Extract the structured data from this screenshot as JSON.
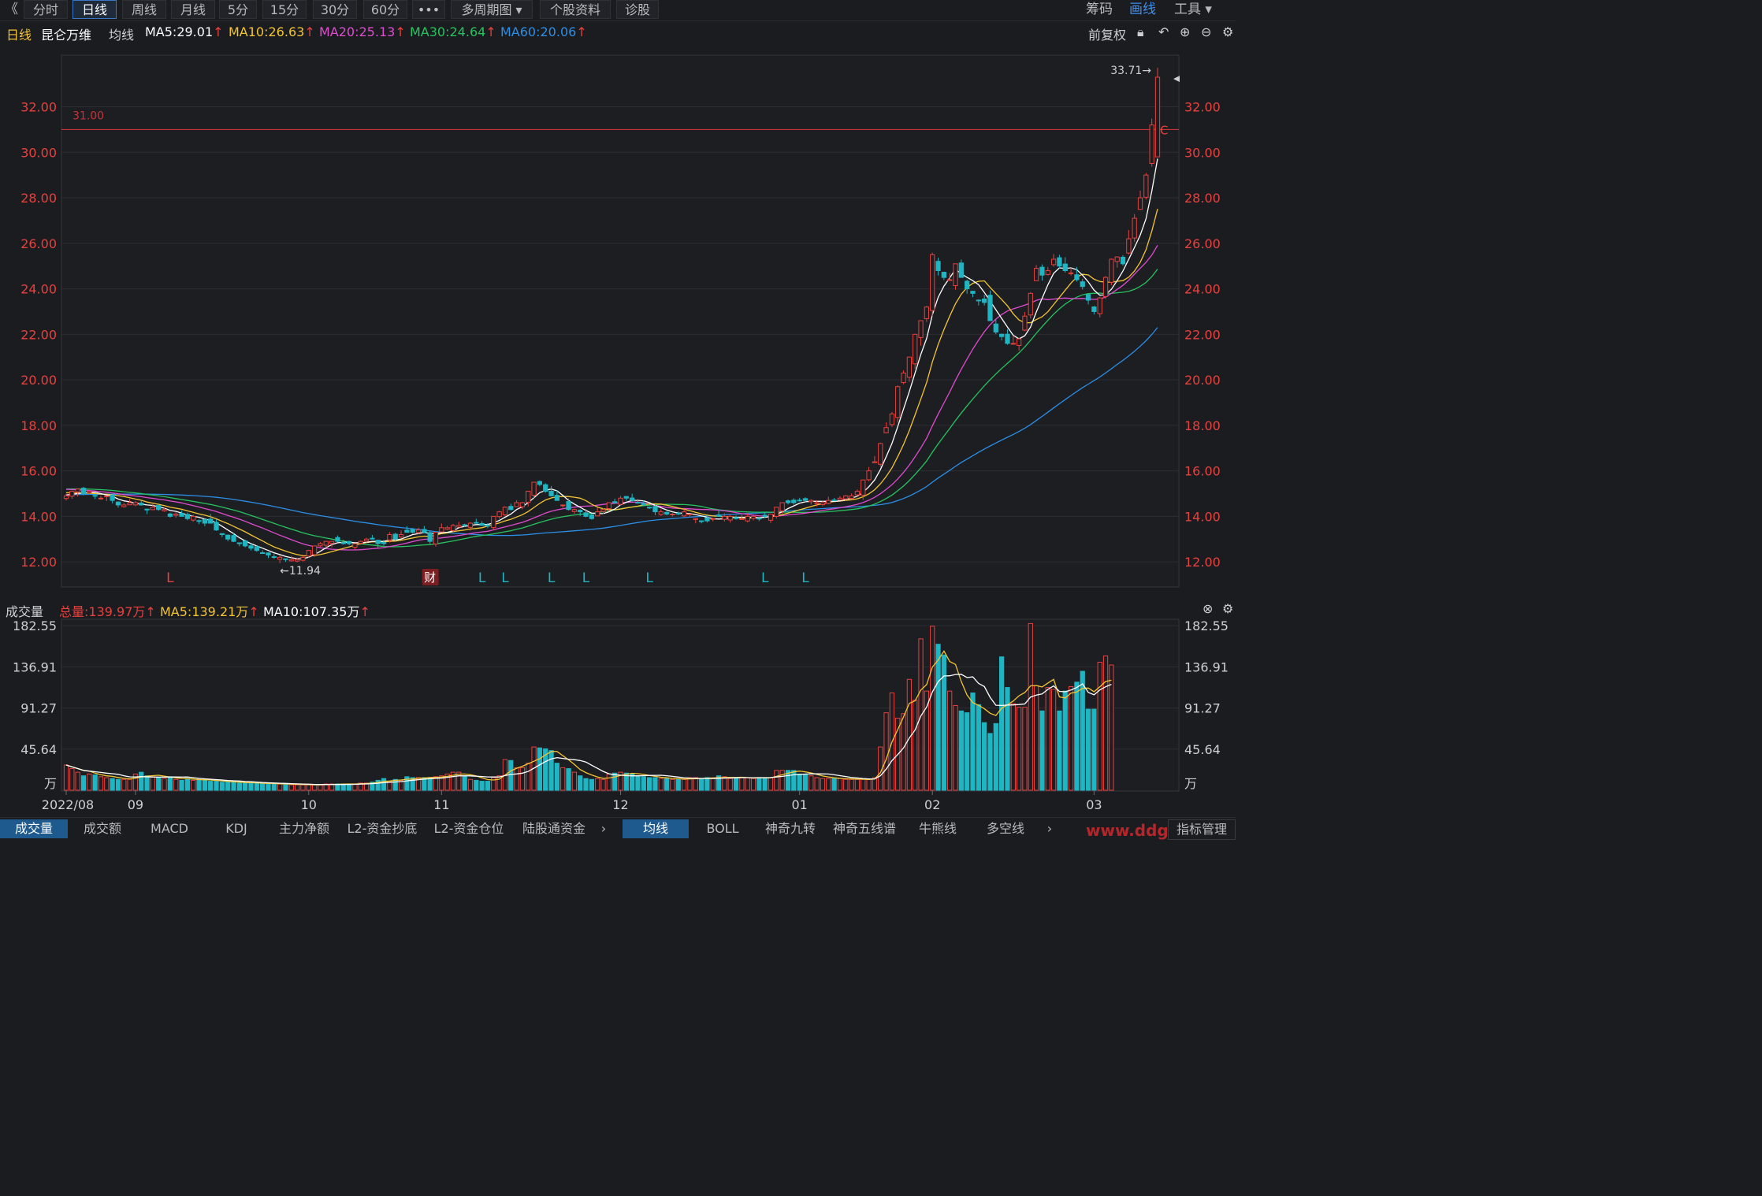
{
  "toolbar": {
    "back_icon": "《",
    "tabs": [
      "分时",
      "日线",
      "周线",
      "月线",
      "5分",
      "15分",
      "30分",
      "60分",
      "•••",
      "多周期图 ▾",
      "个股资料",
      "诊股"
    ],
    "active_tab": "日线",
    "right_items": [
      "筹码",
      "画线",
      "工具 ▾"
    ]
  },
  "info": {
    "period": "日线",
    "stock_name": "昆仑万维",
    "ma_label": "均线",
    "ma5": "MA5:29.01",
    "ma10": "MA10:26.63",
    "ma20": "MA20:25.13",
    "ma30": "MA30:24.64",
    "ma60": "MA60:20.06",
    "adjust": "前复权"
  },
  "vol_info": {
    "label": "成交量",
    "total": "总量:139.97万",
    "ma5": "MA5:139.21万",
    "ma10": "MA10:107.35万"
  },
  "bottom_tabs_left": [
    "成交量",
    "成交额",
    "MACD",
    "KDJ",
    "主力净额",
    "L2-资金抄底",
    "L2-资金仓位",
    "陆股通资金"
  ],
  "bottom_tabs_right": [
    "均线",
    "BOLL",
    "神奇九转",
    "神奇五线谱",
    "牛熊线",
    "多空线"
  ],
  "bottom_right_button": "指标管理",
  "watermark": "www.ddg",
  "colors": {
    "up": "#e8413e",
    "down": "#1fb5c2",
    "ma5": "#ffffff",
    "ma10": "#f4c532",
    "ma20": "#e04bd0",
    "ma30": "#27c35f",
    "ma60": "#2b8fe8",
    "hline": "#c8333a"
  },
  "chart_data": {
    "type": "candlestick",
    "price_axis": {
      "ticks": [
        12,
        14,
        16,
        18,
        20,
        22,
        24,
        26,
        28,
        30,
        32
      ],
      "labels": [
        "12.00",
        "14.00",
        "16.00",
        "18.00",
        "20.00",
        "22.00",
        "24.00",
        "26.00",
        "28.00",
        "30.00",
        "32.00"
      ],
      "ylim": [
        11.0,
        34.2
      ]
    },
    "x_labels": [
      "2022/08",
      "09",
      "10",
      "11",
      "12",
      "01",
      "02",
      "03"
    ],
    "x_label_days": [
      0,
      12,
      42,
      65,
      96,
      127,
      150,
      178
    ],
    "annotations": {
      "max_label": "33.71→",
      "min_label": "←11.94",
      "hline_value": 31.0,
      "hline_label": "31.00",
      "fin_marker": "财",
      "fin_day": 63,
      "l_markers": [
        {
          "day": 18,
          "color": "#e8413e"
        },
        {
          "day": 72,
          "color": "#1fb5c2"
        },
        {
          "day": 76,
          "color": "#1fb5c2"
        },
        {
          "day": 84,
          "color": "#1fb5c2"
        },
        {
          "day": 90,
          "color": "#1fb5c2"
        },
        {
          "day": 101,
          "color": "#1fb5c2"
        },
        {
          "day": 121,
          "color": "#1fb5c2"
        },
        {
          "day": 128,
          "color": "#1fb5c2"
        }
      ],
      "l_text": "L",
      "c_marker": "C"
    },
    "closes": [
      14.9,
      15.1,
      15.2,
      15.0,
      15.1,
      14.9,
      14.8,
      14.9,
      14.7,
      14.5,
      14.5,
      14.6,
      14.6,
      14.5,
      14.3,
      14.4,
      14.3,
      14.3,
      14.0,
      14.1,
      14.0,
      13.9,
      14.0,
      13.8,
      13.7,
      13.7,
      13.4,
      13.2,
      13.0,
      12.9,
      12.8,
      12.7,
      12.6,
      12.5,
      12.4,
      12.3,
      12.2,
      12.2,
      12.1,
      12.1,
      12.1,
      12.2,
      12.5,
      12.7,
      12.8,
      12.9,
      12.9,
      12.9,
      12.8,
      12.8,
      12.8,
      12.9,
      13.0,
      13.0,
      12.8,
      12.8,
      13.2,
      13.0,
      13.2,
      13.3,
      13.3,
      13.4,
      13.3,
      12.9,
      13.3,
      13.5,
      13.5,
      13.6,
      13.6,
      13.6,
      13.7,
      13.7,
      13.6,
      13.6,
      14.0,
      14.2,
      14.4,
      14.3,
      14.6,
      14.6,
      15.1,
      15.5,
      15.4,
      15.1,
      14.9,
      14.7,
      14.5,
      14.3,
      14.3,
      14.2,
      14.0,
      13.9,
      14.2,
      14.3,
      14.6,
      14.6,
      14.8,
      14.8,
      14.7,
      14.6,
      14.5,
      14.4,
      14.2,
      14.2,
      14.1,
      14.1,
      14.1,
      14.2,
      14.1,
      13.9,
      13.8,
      13.8,
      13.9,
      14.0,
      14.0,
      14.0,
      13.9,
      13.9,
      14.0,
      14.0,
      13.9,
      14.0,
      14.1,
      14.4,
      14.6,
      14.6,
      14.6,
      14.7,
      14.7,
      14.7,
      14.6,
      14.6,
      14.7,
      14.7,
      14.8,
      14.9,
      14.9,
      15.1,
      15.6,
      16.0,
      16.4,
      17.2,
      17.9,
      18.5,
      19.7,
      20.3,
      21.0,
      22.0,
      22.6,
      23.2,
      25.5,
      24.8,
      24.5,
      24.4,
      25.1,
      24.5,
      24.0,
      23.8,
      23.5,
      23.4,
      22.6,
      22.1,
      21.9,
      21.6,
      21.6,
      21.8,
      22.8,
      23.8,
      24.9,
      24.6,
      24.8,
      25.3,
      25.0,
      24.8,
      24.7,
      24.4,
      24.1,
      23.5,
      23.0,
      23.6,
      24.5,
      25.3,
      25.4,
      25.1,
      26.2,
      27.1,
      28.0,
      29.0,
      31.2,
      33.3
    ]
  },
  "volume": {
    "axis_labels": [
      "182.55",
      "136.91",
      "91.27",
      "45.64",
      "万"
    ],
    "axis_values": [
      182.55,
      136.91,
      91.27,
      45.64,
      0
    ],
    "unit": "万",
    "values": [
      28,
      24,
      20,
      16,
      18,
      17,
      15,
      14,
      13,
      12,
      12,
      12,
      18,
      20,
      16,
      15,
      14,
      13,
      15,
      12,
      11,
      13,
      11,
      12,
      11,
      10,
      10,
      9,
      9,
      9,
      8,
      8,
      8,
      8,
      7,
      7,
      7,
      7,
      7,
      6,
      6,
      6,
      6,
      6,
      6,
      7,
      7,
      7,
      7,
      7,
      7,
      8,
      8,
      9,
      11,
      13,
      10,
      12,
      11,
      15,
      14,
      14,
      14,
      14,
      15,
      16,
      18,
      20,
      20,
      16,
      12,
      11,
      10,
      10,
      14,
      16,
      34,
      33,
      25,
      25,
      30,
      48,
      47,
      46,
      44,
      30,
      25,
      24,
      20,
      16,
      13,
      12,
      13,
      12,
      18,
      19,
      20,
      19,
      18,
      16,
      15,
      14,
      14,
      13,
      13,
      12,
      12,
      12,
      14,
      14,
      13,
      14,
      13,
      16,
      15,
      13,
      14,
      14,
      14,
      13,
      14,
      14,
      14,
      22,
      22,
      22,
      22,
      18,
      18,
      16,
      14,
      13,
      13,
      13,
      13,
      12,
      12,
      12,
      12,
      12,
      14,
      48,
      86,
      108,
      80,
      85,
      123,
      100,
      168,
      110,
      182,
      162,
      150,
      110,
      94,
      88,
      86,
      108,
      95,
      75,
      63,
      74,
      148,
      114,
      96,
      92,
      92,
      185,
      116,
      88,
      114,
      112,
      88,
      110,
      115,
      120,
      132,
      90,
      90,
      142,
      149,
      139
    ]
  }
}
